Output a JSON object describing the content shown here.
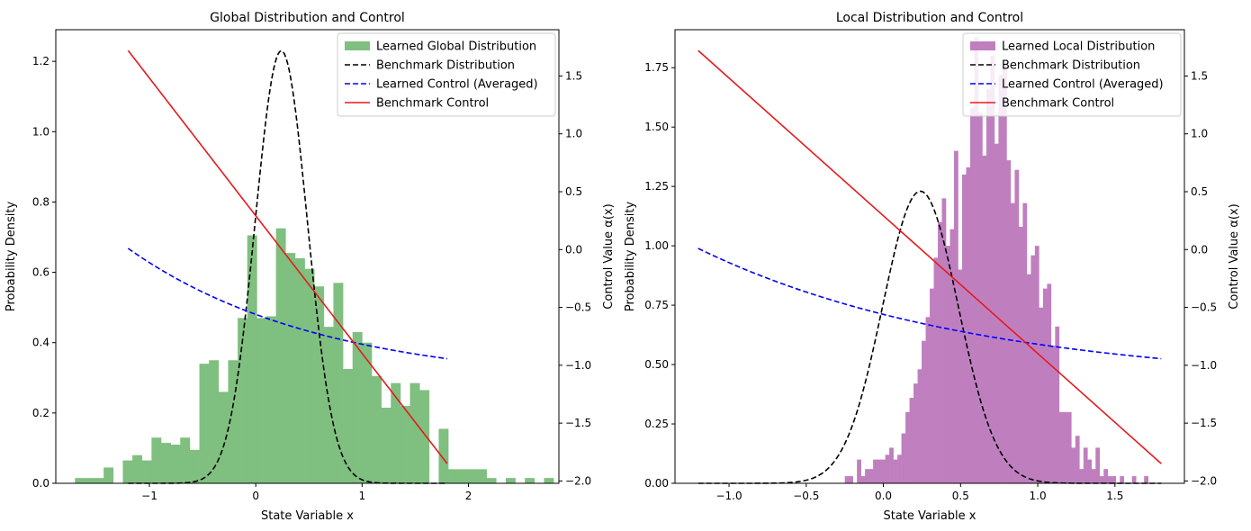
{
  "chart_data": [
    {
      "type": "histogram+line",
      "title": "Global Distribution and Control",
      "xlabel": "State Variable x",
      "ylabel": "Probability Density",
      "y2label": "Control Value α(x)",
      "xlim": [
        -1.88,
        2.85
      ],
      "ylim": [
        0,
        1.29
      ],
      "y2lim": [
        -2.02,
        1.9
      ],
      "xticks": [
        -1,
        0,
        1,
        2
      ],
      "xtick_labels": [
        "−1",
        "0",
        "1",
        "2"
      ],
      "yticks": [
        0.0,
        0.2,
        0.4,
        0.6,
        0.8,
        1.0,
        1.2
      ],
      "ytick_labels": [
        "0.0",
        "0.2",
        "0.4",
        "0.6",
        "0.8",
        "1.0",
        "1.2"
      ],
      "y2ticks": [
        -2.0,
        -1.5,
        -1.0,
        -0.5,
        0.0,
        0.5,
        1.0,
        1.5
      ],
      "y2tick_labels": [
        "−2.0",
        "−1.5",
        "−1.0",
        "−0.5",
        "0.0",
        "0.5",
        "1.0",
        "1.5"
      ],
      "histogram": {
        "name": "Learned Global Distribution",
        "color": "#7fbf7f",
        "bin_start": -1.7,
        "bin_width": 0.09,
        "heights": [
          0.015,
          0.015,
          0.015,
          0.045,
          0,
          0.065,
          0.08,
          0.065,
          0.13,
          0.115,
          0.11,
          0.13,
          0.095,
          0.34,
          0.35,
          0.26,
          0.35,
          0.47,
          0.705,
          0.47,
          0.475,
          0.725,
          0.655,
          0.64,
          0.61,
          0.56,
          0.445,
          0.57,
          0.325,
          0.43,
          0.4,
          0.305,
          0.215,
          0.285,
          0.22,
          0.285,
          0.265,
          0,
          0.155,
          0.04,
          0.04,
          0.04,
          0.04,
          0.015,
          0,
          0.015,
          0,
          0.015,
          0,
          0.015
        ]
      },
      "series": [
        {
          "name": "Benchmark Distribution",
          "style": "dashed",
          "color": "#000000",
          "axis": "left",
          "kind": "gaussian",
          "mean": 0.24,
          "sd": 0.245,
          "peak": 1.23,
          "x_range": [
            -1.2,
            1.8
          ]
        },
        {
          "name": "Learned Control (Averaged)",
          "style": "dashed",
          "color": "#0000ff",
          "axis": "right",
          "kind": "decay",
          "a": -1.17,
          "b": 1.18,
          "k": 0.55,
          "x_range": [
            -1.2,
            1.8
          ]
        },
        {
          "name": "Benchmark Control",
          "style": "solid",
          "color": "#e41a1c",
          "axis": "right",
          "kind": "linear",
          "points": [
            [
              -1.2,
              1.72
            ],
            [
              1.8,
              -1.85
            ]
          ]
        }
      ],
      "legend": [
        "Learned Global Distribution",
        "Benchmark Distribution",
        "Learned Control (Averaged)",
        "Benchmark Control"
      ],
      "legend_position": "top-right"
    },
    {
      "type": "histogram+line",
      "title": "Local Distribution and Control",
      "xlabel": "State Variable x",
      "ylabel": "Probability Density",
      "y2label": "Control Value α(x)",
      "xlim": [
        -1.35,
        1.95
      ],
      "ylim": [
        0,
        1.91
      ],
      "y2lim": [
        -2.02,
        1.9
      ],
      "xticks": [
        -1.0,
        -0.5,
        0.0,
        0.5,
        1.0,
        1.5
      ],
      "xtick_labels": [
        "−1.0",
        "−0.5",
        "0.0",
        "0.5",
        "1.0",
        "1.5"
      ],
      "yticks": [
        0.0,
        0.25,
        0.5,
        0.75,
        1.0,
        1.25,
        1.5,
        1.75
      ],
      "ytick_labels": [
        "0.00",
        "0.25",
        "0.50",
        "0.75",
        "1.00",
        "1.25",
        "1.50",
        "1.75"
      ],
      "y2ticks": [
        -2.0,
        -1.5,
        -1.0,
        -0.5,
        0.0,
        0.5,
        1.0,
        1.5
      ],
      "y2tick_labels": [
        "−2.0",
        "−1.5",
        "−1.0",
        "−0.5",
        "0.0",
        "0.5",
        "1.0",
        "1.5"
      ],
      "histogram": {
        "name": "Learned Local Distribution",
        "color": "#bf7fbf",
        "bin_start": -0.25,
        "bin_width": 0.0262,
        "heights": [
          0.03,
          0.03,
          0,
          0.1,
          0.03,
          0.06,
          0.06,
          0.1,
          0.1,
          0.1,
          0.12,
          0.15,
          0.1,
          0.12,
          0.21,
          0.3,
          0.36,
          0.42,
          0.48,
          0.6,
          0.7,
          0.82,
          0.95,
          1.1,
          1.2,
          1.0,
          1.07,
          1.4,
          0.9,
          1.3,
          1.33,
          1.58,
          1.88,
          1.56,
          1.38,
          1.66,
          1.8,
          1.43,
          1.72,
          1.76,
          1.36,
          1.18,
          1.32,
          1.08,
          1.18,
          0.88,
          0.96,
          1.0,
          0.74,
          0.82,
          0.84,
          0.58,
          0.66,
          0.3,
          0.3,
          0.3,
          0.15,
          0.2,
          0.06,
          0.15,
          0.1,
          0.06,
          0.15,
          0.03,
          0.06,
          0.03,
          0.03,
          0.0,
          0.03,
          0.0,
          0.0,
          0.03,
          0.0,
          0.0,
          0.03
        ]
      },
      "series": [
        {
          "name": "Benchmark Distribution",
          "style": "dashed",
          "color": "#000000",
          "axis": "left",
          "kind": "gaussian",
          "mean": 0.24,
          "sd": 0.245,
          "peak": 1.23,
          "x_range": [
            -1.2,
            1.8
          ]
        },
        {
          "name": "Learned Control (Averaged)",
          "style": "dashed",
          "color": "#0000ff",
          "axis": "right",
          "kind": "decay",
          "a": -1.17,
          "b": 1.18,
          "k": 0.55,
          "x_range": [
            -1.2,
            1.8
          ]
        },
        {
          "name": "Benchmark Control",
          "style": "solid",
          "color": "#e41a1c",
          "axis": "right",
          "kind": "linear",
          "points": [
            [
              -1.2,
              1.72
            ],
            [
              1.8,
              -1.85
            ]
          ]
        }
      ],
      "legend": [
        "Learned Local Distribution",
        "Benchmark Distribution",
        "Learned Control (Averaged)",
        "Benchmark Control"
      ],
      "legend_position": "top-right"
    }
  ]
}
